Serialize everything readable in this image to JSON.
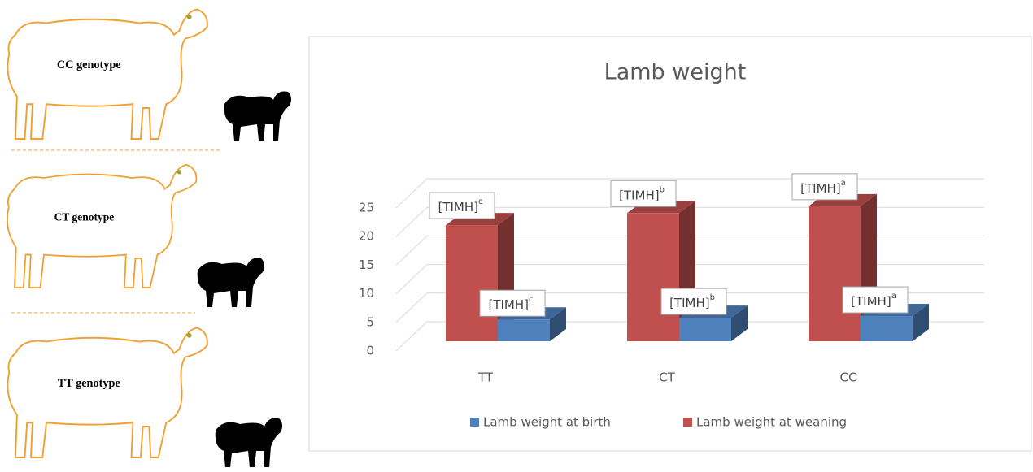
{
  "genotype_panels": [
    "CC genotype",
    "CT genotype",
    "TT genotype"
  ],
  "chart_data": {
    "type": "bar3d",
    "title": "Lamb weight",
    "categories": [
      "TT",
      "CT",
      "CC"
    ],
    "series": [
      {
        "name": "Lamb weight at weaning",
        "color": "#c0504d",
        "values": [
          20.3,
          22.4,
          23.6
        ],
        "labels": [
          {
            "text": "[TIMH]",
            "sup": "c"
          },
          {
            "text": "[TIMH]",
            "sup": "b"
          },
          {
            "text": "[TIMH]",
            "sup": "a"
          }
        ]
      },
      {
        "name": "Lamb weight at birth",
        "color": "#4f81bd",
        "values": [
          3.8,
          4.1,
          4.4
        ],
        "labels": [
          {
            "text": "[TIMH]",
            "sup": "c"
          },
          {
            "text": "[TIMH]",
            "sup": "b"
          },
          {
            "text": "[TIMH]",
            "sup": "a"
          }
        ]
      }
    ],
    "legend_order": [
      1,
      0
    ],
    "ylim": [
      0,
      25
    ],
    "yticks": [
      0,
      5,
      10,
      15,
      20,
      25
    ],
    "grid": true,
    "legend": "bottom"
  }
}
